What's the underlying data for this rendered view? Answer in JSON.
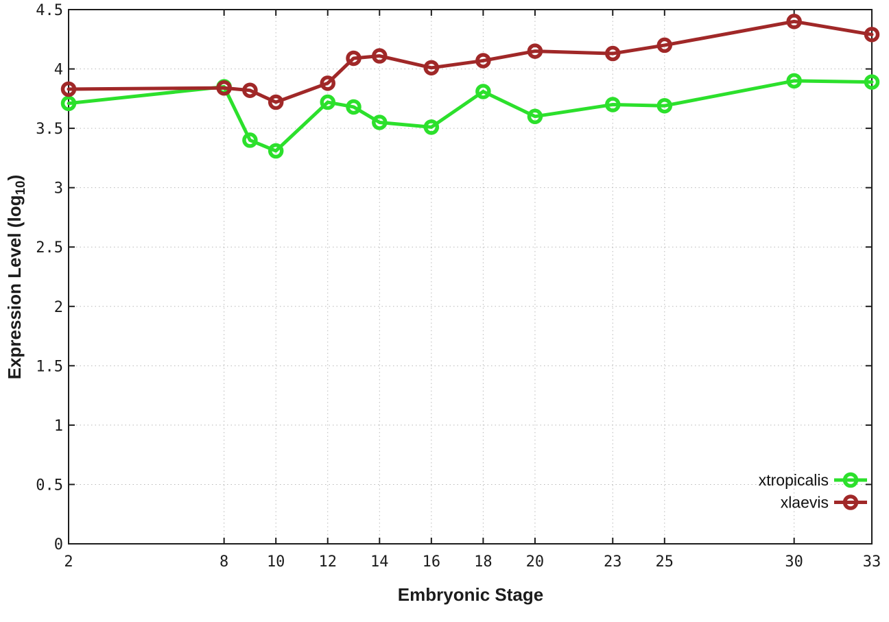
{
  "chart_data": {
    "type": "line",
    "title": "",
    "xlabel": "Embryonic Stage",
    "ylabel": "Expression Level (log10)",
    "ylabel_parts": {
      "prefix": "Expression Level (log",
      "sub": "10",
      "suffix": ")"
    },
    "xlim": [
      2,
      33
    ],
    "ylim": [
      0,
      4.5
    ],
    "grid": true,
    "legend_position": "inside-bottom-right",
    "marker": "open-circle",
    "x": [
      2,
      8,
      9,
      10,
      12,
      13,
      14,
      16,
      18,
      20,
      23,
      25,
      30,
      33
    ],
    "series": [
      {
        "name": "xtropicalis",
        "color": "#2ce02c",
        "values": [
          3.71,
          3.85,
          3.4,
          3.31,
          3.72,
          3.68,
          3.55,
          3.51,
          3.81,
          3.6,
          3.7,
          3.69,
          3.9,
          3.89
        ]
      },
      {
        "name": "xlaevis",
        "color": "#a02828",
        "values": [
          3.83,
          3.84,
          3.82,
          3.72,
          3.88,
          4.09,
          4.11,
          4.01,
          4.07,
          4.15,
          4.13,
          4.2,
          4.4,
          4.29
        ]
      }
    ],
    "xticks": {
      "values": [
        2,
        8,
        10,
        12,
        14,
        16,
        18,
        20,
        23,
        25,
        30,
        33
      ],
      "labels": [
        "2",
        "8",
        "10",
        "12",
        "14",
        "16",
        "18",
        "20",
        "23",
        "25",
        "30",
        "33"
      ]
    },
    "yticks": {
      "values": [
        0,
        0.5,
        1,
        1.5,
        2,
        2.5,
        3,
        3.5,
        4,
        4.5
      ],
      "labels": [
        "0",
        "0.5",
        "1",
        "1.5",
        "2",
        "2.5",
        "3",
        "3.5",
        "4",
        "4.5"
      ]
    },
    "colors": {
      "axis": "#1c1c1c",
      "grid": "#b8b8b8",
      "background": "#ffffff"
    }
  }
}
